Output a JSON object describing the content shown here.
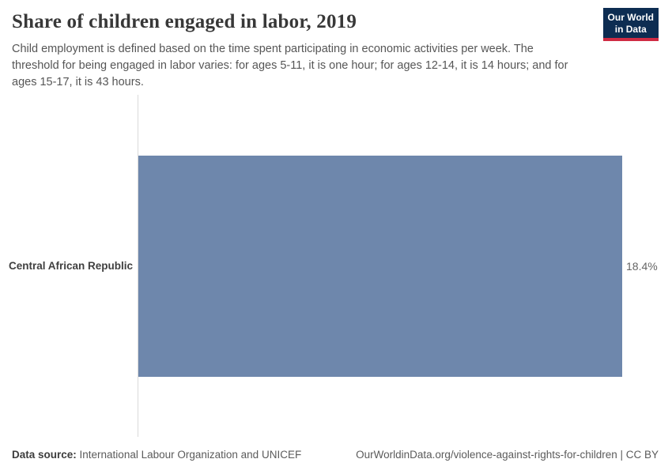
{
  "header": {
    "title": "Share of children engaged in labor, 2019",
    "subtitle": "Child employment is defined based on the time spent participating in economic activities per week. The threshold for being engaged in labor varies: for ages 5-11, it is one hour; for ages 12-14, it is 14 hours; and for ages 15-17, it is 43 hours.",
    "logo": {
      "line1": "Our World",
      "line2": "in Data"
    }
  },
  "chart_data": {
    "type": "bar",
    "orientation": "horizontal",
    "title": "Share of children engaged in labor, 2019",
    "categories": [
      "Central African Republic"
    ],
    "values": [
      18.4
    ],
    "value_labels": [
      "18.4%"
    ],
    "unit": "%",
    "xlabel": "",
    "ylabel": "",
    "xlim": [
      0,
      18.4
    ],
    "grid": false,
    "legend": false,
    "bar_color": "#6e87ac"
  },
  "colors": {
    "bar": "#6e87ac",
    "logo_navy": "#0d2d52",
    "logo_red": "#cf2b43",
    "axis_line": "#d9d9d9",
    "title_text": "#383838",
    "subtitle_text": "#565656",
    "value_text": "#666666"
  },
  "footer": {
    "source_label": "Data source:",
    "source_text": " International Labour Organization and UNICEF",
    "link_text": "OurWorldinData.org/violence-against-rights-for-children | CC BY"
  }
}
